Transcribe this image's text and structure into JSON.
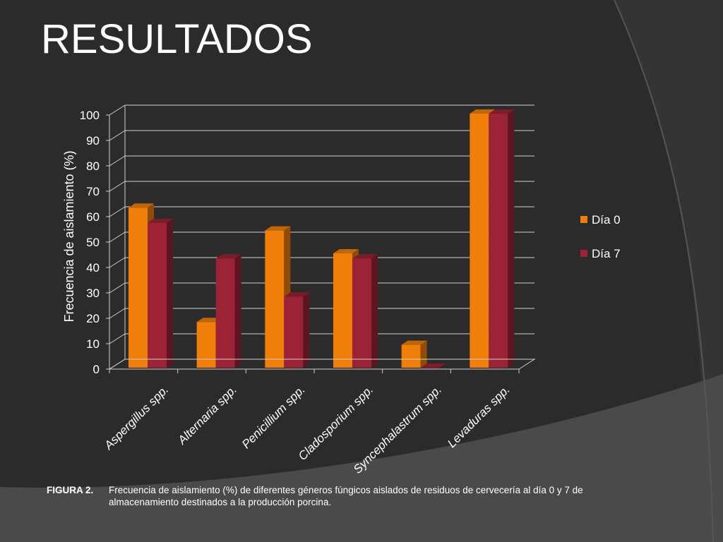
{
  "slide": {
    "title": "RESULTADOS"
  },
  "caption": {
    "label": "FIGURA 2.",
    "text": "Frecuencia de aislamiento (%) de diferentes géneros fúngicos aislados de residuos de cervecería al día 0 y 7 de almacenamiento destinados a la producción porcina."
  },
  "chart_data": {
    "type": "bar",
    "style": "3d-clustered-column",
    "categories": [
      "Aspergillus spp.",
      "Alternaria spp.",
      "Penicillium spp.",
      "Cladosporium spp.",
      "Syncephalastrum spp.",
      "Levaduras spp."
    ],
    "series": [
      {
        "name": "Día 0",
        "color": "#f07f09",
        "values": [
          63,
          18,
          54,
          45,
          9,
          100
        ]
      },
      {
        "name": "Día 7",
        "color": "#9b2335",
        "values": [
          57,
          43,
          28,
          43,
          0,
          100
        ]
      }
    ],
    "ylabel": "Frecuencia de aislamiento (%)",
    "xlabel": "",
    "ylim": [
      0,
      100
    ],
    "yticks": [
      0,
      10,
      20,
      30,
      40,
      50,
      60,
      70,
      80,
      90,
      100
    ],
    "grid": true,
    "legend": "right"
  }
}
